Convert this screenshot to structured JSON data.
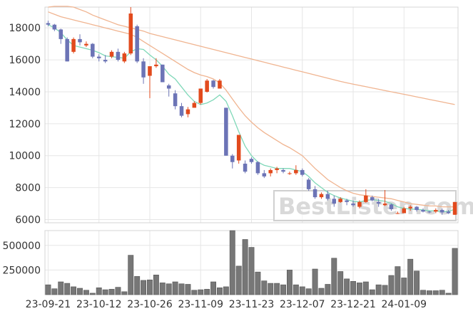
{
  "chart_data": [
    {
      "type": "candlestick",
      "x_labels": [
        "23-09-21",
        "23-10-12",
        "23-10-26",
        "23-11-09",
        "23-11-23",
        "23-12-07",
        "23-12-21",
        "24-01-09"
      ],
      "x_label_index": [
        0,
        8,
        16,
        24,
        32,
        40,
        48,
        56
      ],
      "y_ticks": [
        6000,
        8000,
        10000,
        12000,
        14000,
        16000,
        18000
      ],
      "ylim": [
        5800,
        19300
      ],
      "grid": true,
      "colors": {
        "up": "#e24a1d",
        "down": "#6c74b6",
        "ma_short": "#7fd8b8",
        "ma_long": "#f0b490",
        "grid": "#e6e6e6"
      },
      "candles": [
        [
          18300,
          18450,
          18100,
          18200
        ],
        [
          18200,
          18250,
          17800,
          17900
        ],
        [
          17900,
          17950,
          17000,
          17300
        ],
        [
          17300,
          17400,
          15900,
          15900
        ],
        [
          16500,
          17400,
          16400,
          17300
        ],
        [
          17300,
          17600,
          16900,
          17100
        ],
        [
          16900,
          17150,
          16800,
          17000
        ],
        [
          17000,
          17050,
          16100,
          16200
        ],
        [
          16200,
          16350,
          15900,
          16100
        ],
        [
          16000,
          16300,
          15800,
          15900
        ],
        [
          16200,
          16600,
          16100,
          16500
        ],
        [
          16500,
          16700,
          15900,
          16000
        ],
        [
          15900,
          16500,
          15800,
          16400
        ],
        [
          16400,
          19300,
          16300,
          18900
        ],
        [
          18100,
          18200,
          15800,
          15900
        ],
        [
          15900,
          16100,
          14500,
          14900
        ],
        [
          15000,
          15500,
          13600,
          15600
        ],
        [
          15600,
          16100,
          15500,
          15700
        ],
        [
          15700,
          15700,
          14600,
          14600
        ],
        [
          14400,
          14500,
          13700,
          14200
        ],
        [
          13900,
          14100,
          12900,
          13100
        ],
        [
          13100,
          13300,
          12400,
          12500
        ],
        [
          12600,
          13050,
          12400,
          12900
        ],
        [
          13000,
          13400,
          13000,
          13300
        ],
        [
          13300,
          14100,
          13200,
          14200
        ],
        [
          14000,
          14800,
          13950,
          14700
        ],
        [
          14700,
          14750,
          14200,
          14300
        ],
        [
          14200,
          14800,
          14200,
          14700
        ],
        [
          13000,
          13000,
          10000,
          10000
        ],
        [
          10000,
          10100,
          9200,
          9600
        ],
        [
          9700,
          11300,
          9500,
          11300
        ],
        [
          9500,
          9700,
          8900,
          9000
        ],
        [
          9800,
          9900,
          9500,
          9600
        ],
        [
          9600,
          9650,
          8800,
          8900
        ],
        [
          8900,
          9100,
          8600,
          8700
        ],
        [
          8900,
          9200,
          8700,
          9100
        ],
        [
          9100,
          9300,
          8900,
          9200
        ],
        [
          9100,
          9200,
          8900,
          9000
        ],
        [
          8900,
          9000,
          8800,
          8900
        ],
        [
          8900,
          9400,
          8800,
          9100
        ],
        [
          9100,
          9200,
          8700,
          8800
        ],
        [
          8500,
          8600,
          7800,
          7900
        ],
        [
          7900,
          8100,
          7300,
          7400
        ],
        [
          7400,
          7700,
          7300,
          7600
        ],
        [
          7600,
          7800,
          7200,
          7300
        ],
        [
          7300,
          7500,
          6800,
          7000
        ],
        [
          7100,
          7400,
          7050,
          7300
        ],
        [
          7200,
          7300,
          6900,
          7100
        ],
        [
          7000,
          7200,
          6800,
          6900
        ],
        [
          6800,
          7200,
          6700,
          7100
        ],
        [
          7100,
          7900,
          7050,
          7500
        ],
        [
          7400,
          7500,
          7150,
          7200
        ],
        [
          7100,
          7300,
          6800,
          7000
        ],
        [
          6900,
          7850,
          6850,
          7000
        ],
        [
          6950,
          7000,
          6550,
          6650
        ],
        [
          6400,
          6500,
          6350,
          6400
        ],
        [
          6400,
          6800,
          6400,
          6700
        ],
        [
          6700,
          6900,
          6550,
          6800
        ],
        [
          6800,
          6850,
          6500,
          6600
        ],
        [
          6600,
          6700,
          6450,
          6500
        ],
        [
          6500,
          6550,
          6400,
          6450
        ],
        [
          6500,
          6700,
          6400,
          6600
        ],
        [
          6600,
          6700,
          6300,
          6450
        ],
        [
          6500,
          6600,
          6350,
          6400
        ],
        [
          6300,
          7100,
          6300,
          7100
        ]
      ],
      "ma_short": [
        18200,
        18000,
        17700,
        17250,
        16900,
        16800,
        16700,
        16600,
        16450,
        16250,
        16200,
        16150,
        16100,
        16500,
        16700,
        16650,
        16300,
        16000,
        15600,
        15100,
        14800,
        14300,
        13800,
        13400,
        13200,
        13300,
        13500,
        13800,
        13400,
        12500,
        11500,
        10600,
        10000,
        9600,
        9400,
        9300,
        9200,
        9200,
        9200,
        9100,
        9000,
        8700,
        8300,
        8000,
        7700,
        7500,
        7350,
        7250,
        7150,
        7100,
        7200,
        7250,
        7200,
        7150,
        7000,
        6800,
        6700,
        6650,
        6650,
        6600,
        6550,
        6550,
        6500,
        6500,
        6650
      ],
      "ma_mid": [
        19000,
        18850,
        18700,
        18600,
        18500,
        18400,
        18300,
        18200,
        18100,
        18000,
        17900,
        17800,
        17700,
        17600,
        17400,
        17150,
        16900,
        16650,
        16400,
        16150,
        15900,
        15650,
        15400,
        15200,
        15050,
        14950,
        14800,
        14550,
        14100,
        13550,
        13000,
        12500,
        12100,
        11750,
        11450,
        11200,
        10950,
        10700,
        10500,
        10250,
        10000,
        9600,
        9200,
        8850,
        8500,
        8250,
        8000,
        7800,
        7650,
        7550,
        7500,
        7450,
        7400,
        7350,
        7300,
        7200,
        7100,
        7000,
        6950,
        6900,
        6850,
        6850,
        6800,
        6800,
        6800
      ],
      "ma_long": [
        19300,
        19350,
        19350,
        19350,
        19300,
        19150,
        19000,
        18800,
        18650,
        18500,
        18350,
        18200,
        18100,
        18000,
        17900,
        17800,
        17650,
        17550,
        17450,
        17350,
        17250,
        17150,
        17050,
        16950,
        16850,
        16750,
        16650,
        16550,
        16450,
        16350,
        16250,
        16150,
        16050,
        15950,
        15850,
        15750,
        15650,
        15550,
        15450,
        15350,
        15250,
        15150,
        15050,
        14950,
        14850,
        14750,
        14650,
        14560,
        14480,
        14400,
        14320,
        14240,
        14160,
        14080,
        14000,
        13920,
        13840,
        13760,
        13680,
        13600,
        13520,
        13440,
        13360,
        13280,
        13200
      ]
    },
    {
      "type": "bar",
      "y_ticks": [
        250000,
        500000
      ],
      "ylim": [
        0,
        650000
      ],
      "bar_color": "#777777",
      "values": [
        100000,
        60000,
        130000,
        115000,
        80000,
        65000,
        45000,
        15000,
        70000,
        50000,
        55000,
        75000,
        30000,
        400000,
        185000,
        145000,
        150000,
        200000,
        120000,
        110000,
        130000,
        110000,
        105000,
        45000,
        50000,
        55000,
        130000,
        70000,
        80000,
        650000,
        290000,
        560000,
        480000,
        230000,
        140000,
        115000,
        115000,
        100000,
        250000,
        100000,
        80000,
        60000,
        260000,
        65000,
        105000,
        370000,
        235000,
        160000,
        135000,
        120000,
        130000,
        50000,
        100000,
        95000,
        195000,
        285000,
        170000,
        360000,
        240000,
        45000,
        40000,
        40000,
        45000,
        15000,
        470000
      ]
    }
  ],
  "watermark": "BestListen.com"
}
